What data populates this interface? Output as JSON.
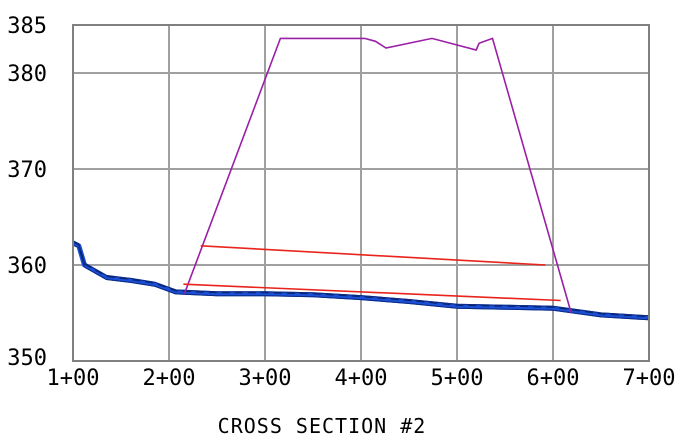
{
  "chart_data": {
    "type": "line",
    "title": "CROSS SECTION #2",
    "xlabel": "",
    "ylabel": "",
    "xlim": [
      100,
      700
    ],
    "ylim": [
      350,
      385
    ],
    "grid": true,
    "x_ticks": [
      {
        "value": 100,
        "label": "1+00"
      },
      {
        "value": 200,
        "label": "2+00"
      },
      {
        "value": 300,
        "label": "3+00"
      },
      {
        "value": 400,
        "label": "4+00"
      },
      {
        "value": 500,
        "label": "5+00"
      },
      {
        "value": 600,
        "label": "6+00"
      },
      {
        "value": 700,
        "label": "7+00"
      }
    ],
    "y_ticks": [
      {
        "value": 350,
        "label": "350"
      },
      {
        "value": 360,
        "label": "360"
      },
      {
        "value": 370,
        "label": "370"
      },
      {
        "value": 380,
        "label": "380"
      },
      {
        "value": 385,
        "label": "385"
      }
    ],
    "colors": {
      "grid": "#a0a0a0",
      "frame": "#808080",
      "ground": "#1a4fd6",
      "ground_edge": "#0b2a80",
      "dam": "#9b1fa6",
      "water": "#e8241c"
    },
    "series": [
      {
        "key": "ground",
        "points": [
          [
            100,
            362.3
          ],
          [
            106,
            362.0
          ],
          [
            112,
            360.0
          ],
          [
            135,
            358.7
          ],
          [
            160,
            358.4
          ],
          [
            185,
            358.0
          ],
          [
            207,
            357.2
          ],
          [
            250,
            357.0
          ],
          [
            300,
            357.0
          ],
          [
            350,
            356.9
          ],
          [
            400,
            356.6
          ],
          [
            450,
            356.2
          ],
          [
            500,
            355.7
          ],
          [
            550,
            355.6
          ],
          [
            600,
            355.5
          ],
          [
            650,
            354.8
          ],
          [
            700,
            354.5
          ]
        ]
      },
      {
        "key": "dam",
        "points": [
          [
            216,
            357.0
          ],
          [
            316,
            383.6
          ],
          [
            404,
            383.6
          ],
          [
            415,
            383.3
          ],
          [
            426,
            382.6
          ],
          [
            474,
            383.6
          ],
          [
            520,
            382.4
          ],
          [
            523,
            383.1
          ],
          [
            537,
            383.6
          ],
          [
            619,
            355.0
          ]
        ]
      },
      {
        "key": "water-upper",
        "points": [
          [
            233,
            362.0
          ],
          [
            592,
            360.0
          ]
        ]
      },
      {
        "key": "water-lower",
        "points": [
          [
            215,
            358.0
          ],
          [
            608,
            356.3
          ]
        ]
      }
    ]
  }
}
